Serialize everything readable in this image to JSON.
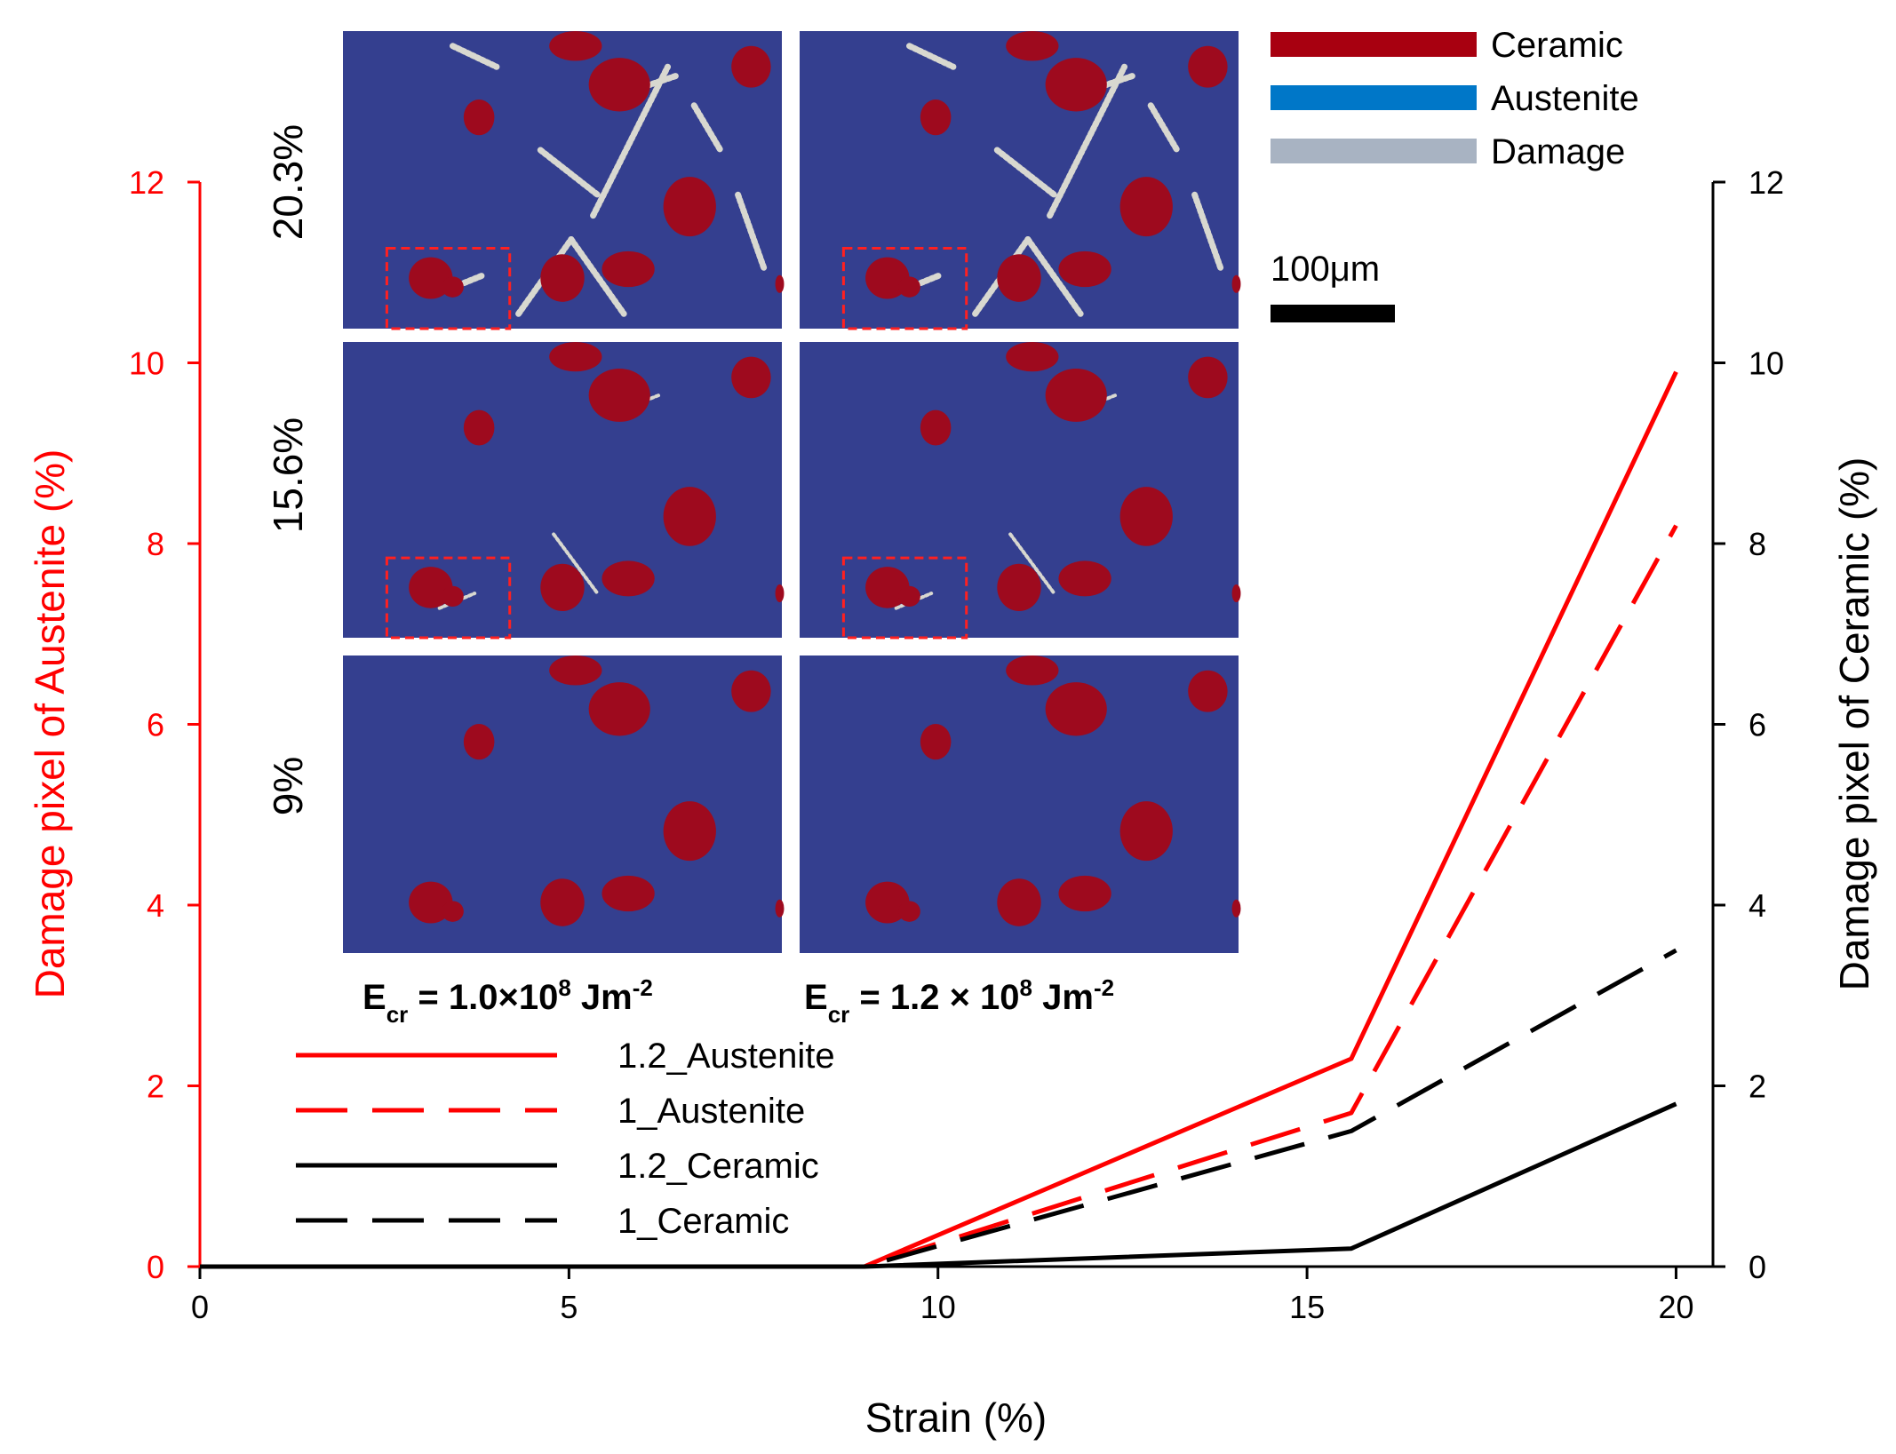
{
  "colors": {
    "austenite_axis": "#ff0000",
    "ceramic_axis": "#000000",
    "ceramic_phase": "#a80010",
    "austenite_phase": "#0077c8",
    "damage_phase": "#a8b3c2",
    "inset_background": "#343f8f",
    "inset_particle": "#9e0a1e",
    "inset_damage": "#d8d8d0",
    "highlight_box": "#ff2020"
  },
  "chart_data": {
    "type": "line",
    "xlabel": "Strain (%)",
    "ylabel_left": "Damage pixel of Austenite (%)",
    "ylabel_right": "Damage pixel of Ceramic (%)",
    "xlim": [
      0,
      20.5
    ],
    "ylim_left": [
      0,
      12
    ],
    "ylim_right": [
      0,
      12
    ],
    "x_ticks": [
      "0",
      "5",
      "10",
      "15",
      "20"
    ],
    "y_ticks_left": [
      "0",
      "2",
      "4",
      "6",
      "8",
      "10",
      "12"
    ],
    "y_ticks_right": [
      "0",
      "2",
      "4",
      "6",
      "8",
      "10",
      "12"
    ],
    "grid": false,
    "legend_position": "bottom-left",
    "series": [
      {
        "name": "1.2_Austenite",
        "axis": "left",
        "color": "#ff0000",
        "dashed": false,
        "x": [
          0,
          9,
          15.6,
          20
        ],
        "y": [
          0,
          0,
          2.3,
          9.9
        ]
      },
      {
        "name": "1_Austenite",
        "axis": "left",
        "color": "#ff0000",
        "dashed": true,
        "x": [
          0,
          9,
          15.6,
          20
        ],
        "y": [
          0,
          0,
          1.7,
          8.2
        ]
      },
      {
        "name": "1.2_Ceramic",
        "axis": "right",
        "color": "#000000",
        "dashed": false,
        "x": [
          0,
          9,
          15.6,
          20
        ],
        "y": [
          0,
          0,
          0.2,
          1.8
        ]
      },
      {
        "name": "1_Ceramic",
        "axis": "right",
        "color": "#000000",
        "dashed": true,
        "x": [
          0,
          9,
          15.6,
          20
        ],
        "y": [
          0,
          0,
          1.5,
          3.5
        ]
      }
    ]
  },
  "inset": {
    "strain_labels": [
      "20.3%",
      "15.6%",
      "9%"
    ],
    "ecr_left": {
      "prefix": "E",
      "sub": "cr",
      "middle": " = 1.0×10",
      "sup": "8",
      "unit": " Jm",
      "unit_sup": "-2"
    },
    "ecr_right": {
      "prefix": "E",
      "sub": "cr",
      "middle": " = 1.2 × 10",
      "sup": "8",
      "unit": " Jm",
      "unit_sup": "-2"
    },
    "phase_legend": [
      "Ceramic",
      "Austenite",
      "Damage"
    ],
    "scale_bar": "100μm"
  }
}
